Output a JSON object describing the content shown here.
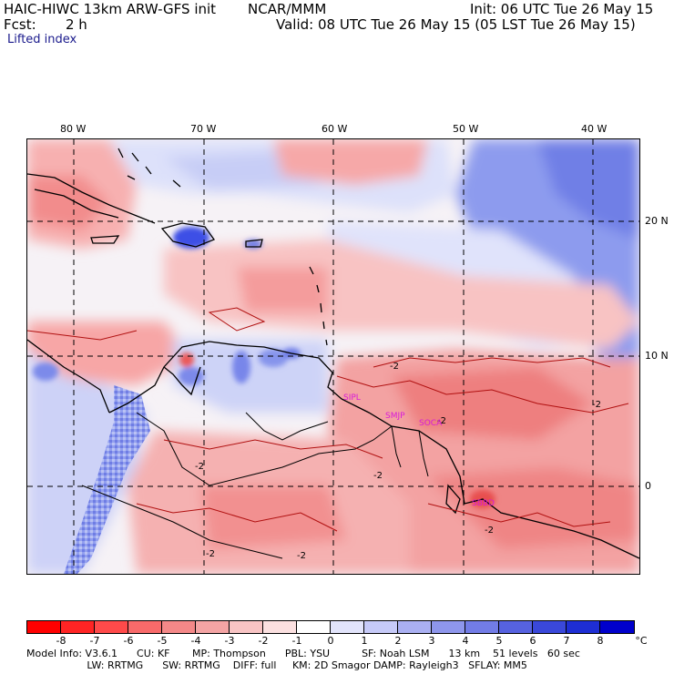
{
  "header": {
    "model_title": "HAIC-HIWC 13km ARW-GFS init",
    "org": "NCAR/MMM",
    "init": "Init: 06 UTC Tue 26 May 15",
    "fcst_label": "Fcst:",
    "fcst_value": "2 h",
    "valid": "Valid: 08 UTC Tue 26 May 15 (05 LST Tue 26 May 15)",
    "field": "Lifted index"
  },
  "axes": {
    "longitudes": [
      "80 W",
      "70 W",
      "60 W",
      "50 W",
      "40 W"
    ],
    "latitudes": [
      "20 N",
      "10 N",
      "0"
    ]
  },
  "map": {
    "stations": [
      "SIPL",
      "SMJP",
      "SOCA",
      "SBBD"
    ],
    "contour_labels": [
      "-2",
      "-2",
      "-2",
      "-2",
      "-2",
      "-2",
      "-2",
      "-2"
    ],
    "colors": {
      "strong_blue": "#3c4fe6",
      "mid_blue": "#8c9cf2",
      "light_blue": "#d7dcfa",
      "neutral": "#f7f4f7",
      "light_red": "#fbc6c6",
      "mid_red": "#f48e8e",
      "strong_red": "#ec5555"
    }
  },
  "colorbar": {
    "colors": [
      "#ff0000",
      "#ff2424",
      "#ff4a4a",
      "#f86a6a",
      "#f48888",
      "#f4a4a4",
      "#f8c4c4",
      "#fbe0e0",
      "#ffffff",
      "#e2e4fb",
      "#c6caf8",
      "#aab0f2",
      "#8e96ec",
      "#727ce6",
      "#5662e0",
      "#3a48da",
      "#1e2ed4",
      "#0000cc"
    ],
    "labels": [
      "-8",
      "-7",
      "-6",
      "-5",
      "-4",
      "-3",
      "-2",
      "-1",
      "0",
      "1",
      "2",
      "3",
      "4",
      "5",
      "6",
      "7",
      "8"
    ],
    "unit": "°C"
  },
  "footer": {
    "line1": "Model Info: V3.6.1      CU: KF       MP: Thompson      PBL: YSU          SF: Noah LSM      13 km    51 levels   60 sec",
    "line2": "                   LW: RRTMG      SW: RRTMG    DIFF: full     KM: 2D Smagor DAMP: Rayleigh3   SFLAY: MM5"
  }
}
